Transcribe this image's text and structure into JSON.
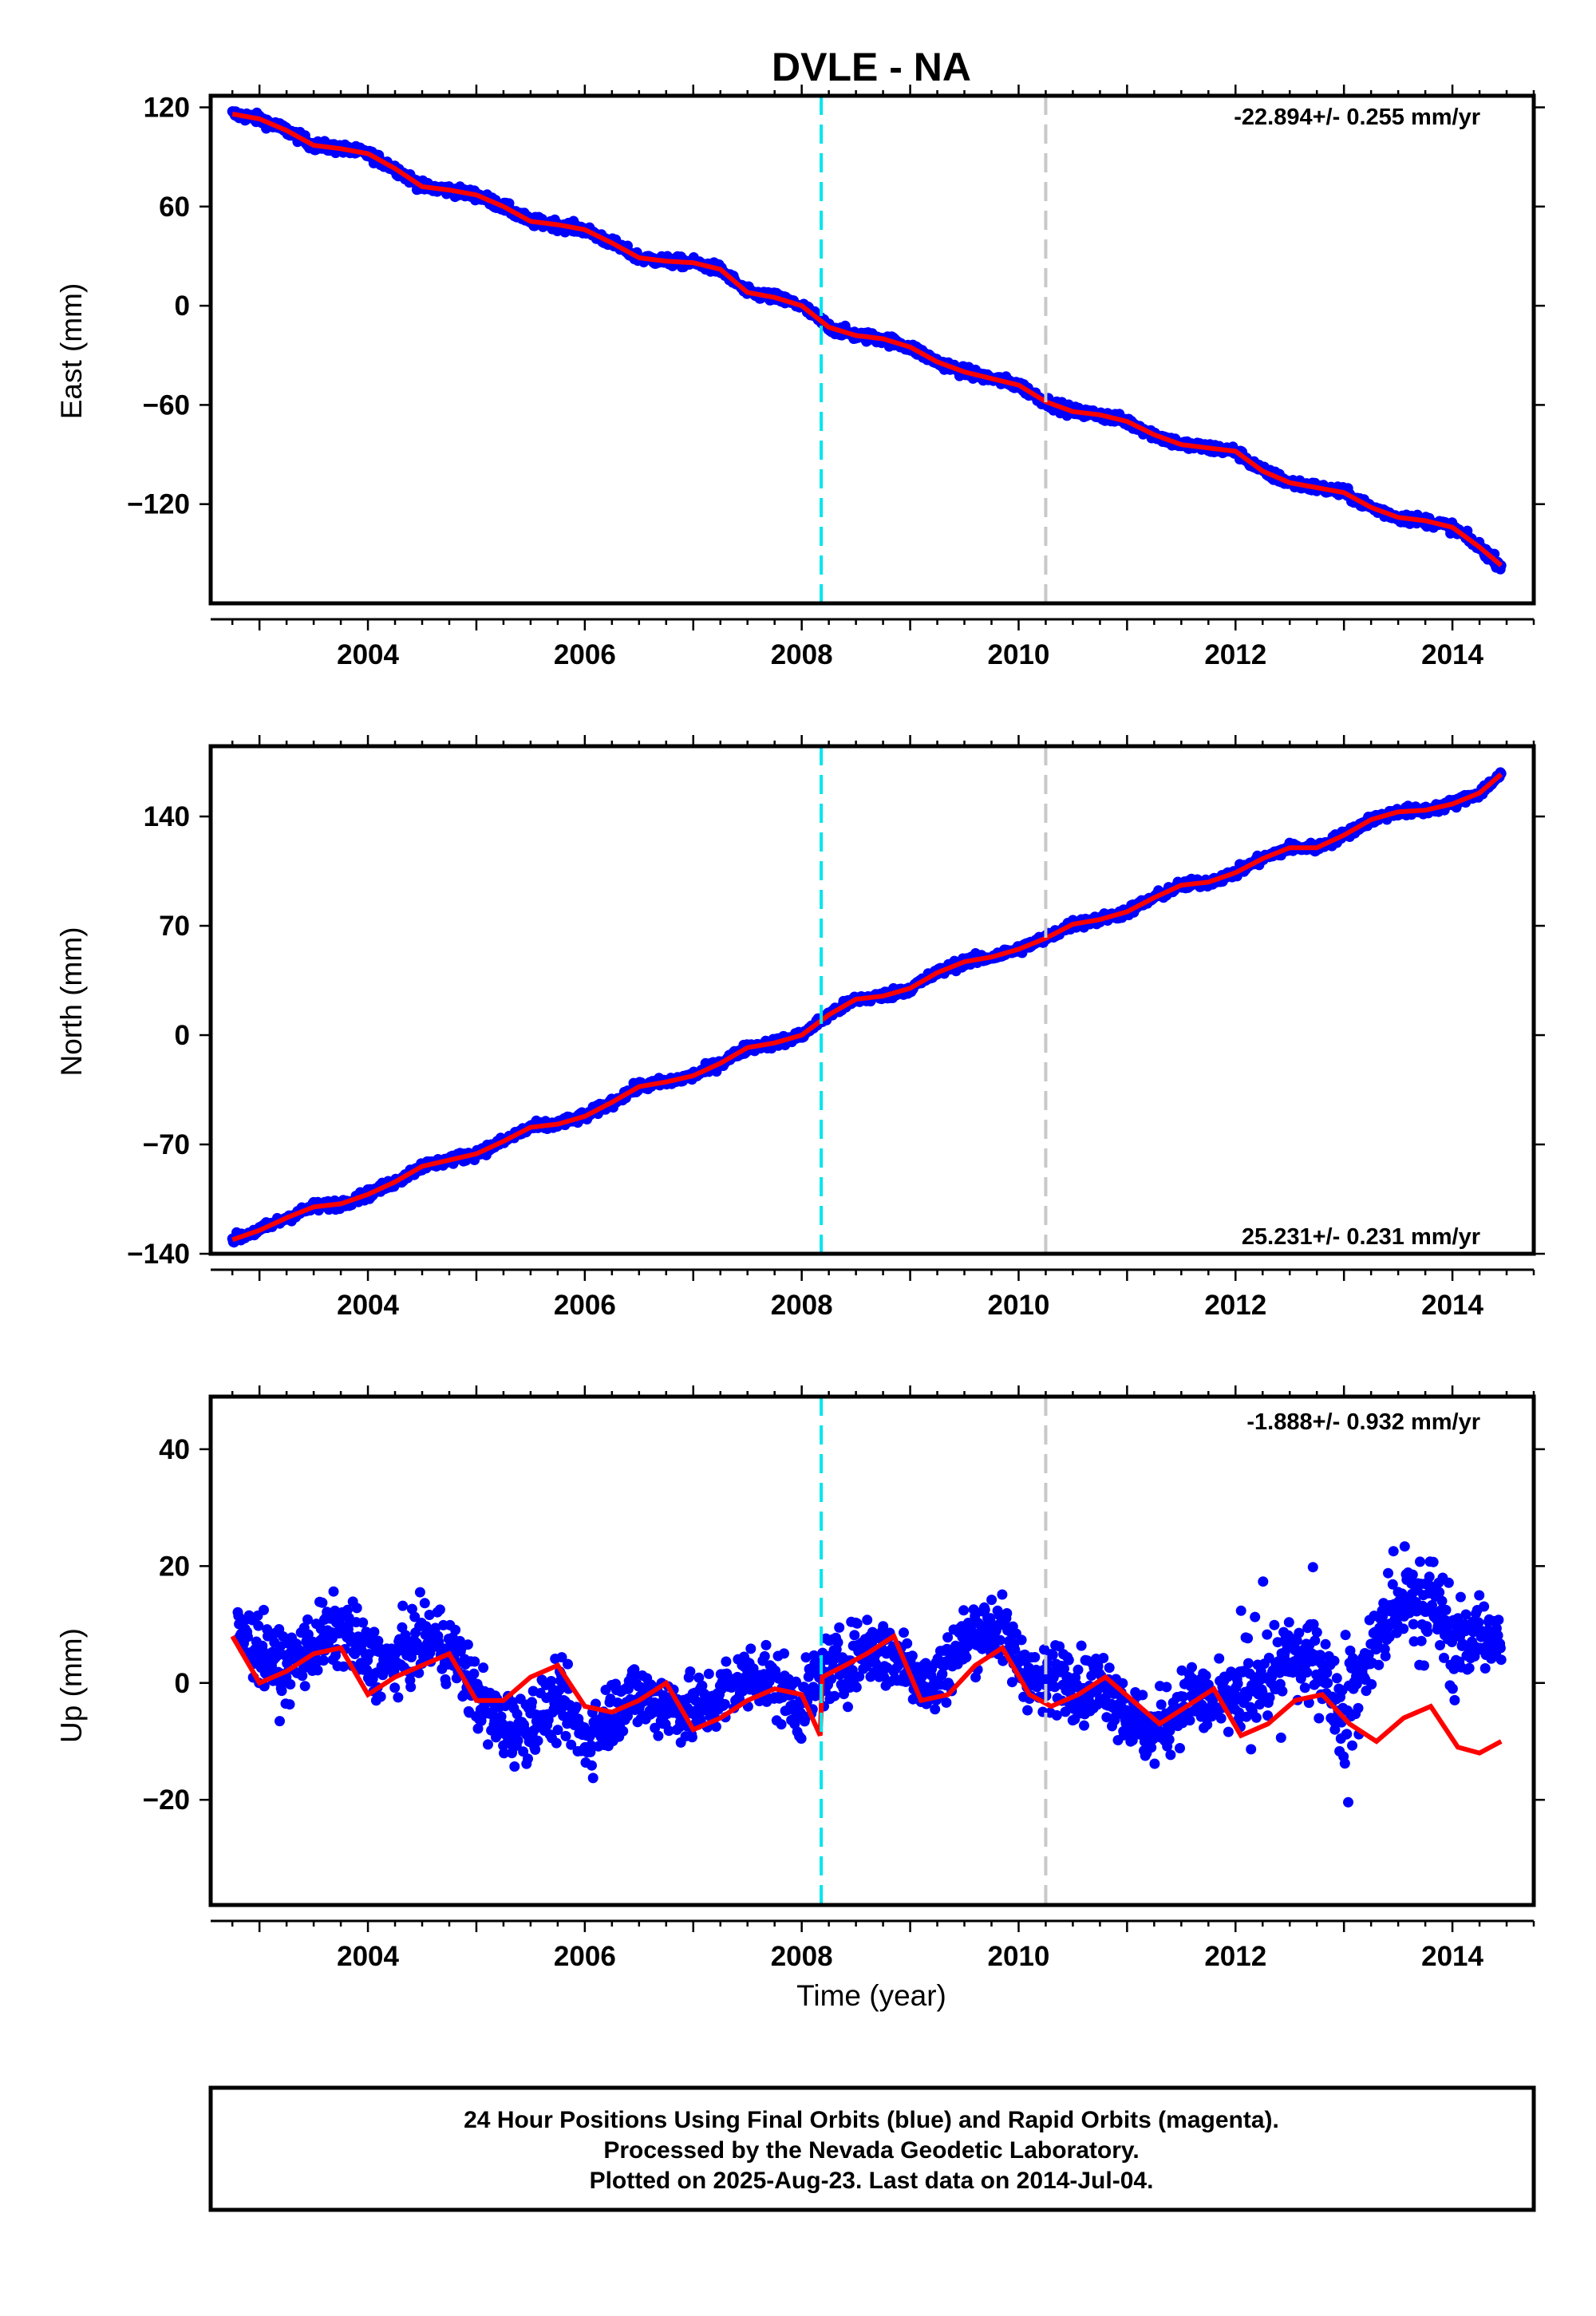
{
  "colors": {
    "final_orbits": "#0000ff",
    "model_fit": "#ff0000",
    "event_line_1": "#00e5ee",
    "event_line_2": "#c8c8c8",
    "frame": "#000000",
    "background": "#ffffff"
  },
  "chart_data": [
    {
      "type": "scatter",
      "title": "DVLE - NA",
      "ylabel": "East (mm)",
      "xlabel": "",
      "xlim": [
        2002.55,
        2014.75
      ],
      "ylim": [
        -180,
        127
      ],
      "xticks": [
        2004,
        2006,
        2008,
        2010,
        2012,
        2014
      ],
      "yticks": [
        120,
        60,
        0,
        -60,
        -120
      ],
      "rate_label": "-22.894+/- 0.255 mm/yr",
      "vertical_lines": [
        2008.18,
        2010.25
      ],
      "series": [
        {
          "role": "observed",
          "x": [
            2002.75,
            2003.0,
            2003.25,
            2003.5,
            2003.75,
            2004.0,
            2004.25,
            2004.5,
            2004.75,
            2005.0,
            2005.25,
            2005.5,
            2005.75,
            2006.0,
            2006.25,
            2006.5,
            2006.75,
            2007.0,
            2007.25,
            2007.5,
            2007.75,
            2008.0,
            2008.25,
            2008.5,
            2008.75,
            2009.0,
            2009.25,
            2009.5,
            2009.75,
            2010.0,
            2010.25,
            2010.5,
            2010.75,
            2011.0,
            2011.25,
            2011.5,
            2011.75,
            2012.0,
            2012.25,
            2012.5,
            2012.75,
            2013.0,
            2013.25,
            2013.5,
            2013.75,
            2014.0,
            2014.25,
            2014.45
          ],
          "y": [
            116,
            113,
            106,
            97,
            95,
            92,
            83,
            72,
            70,
            67,
            60,
            51,
            49,
            46,
            38,
            29,
            27,
            26,
            22,
            8,
            5,
            0,
            -13,
            -18,
            -20,
            -25,
            -34,
            -40,
            -44,
            -48,
            -58,
            -64,
            -66,
            -70,
            -78,
            -84,
            -86,
            -88,
            -100,
            -107,
            -110,
            -113,
            -122,
            -128,
            -130,
            -134,
            -146,
            -157
          ]
        },
        {
          "role": "fit",
          "x": [
            2002.75,
            2003.0,
            2003.25,
            2003.5,
            2003.75,
            2004.0,
            2004.25,
            2004.5,
            2004.75,
            2005.0,
            2005.25,
            2005.5,
            2005.75,
            2006.0,
            2006.25,
            2006.5,
            2006.75,
            2007.0,
            2007.25,
            2007.5,
            2007.75,
            2008.0,
            2008.25,
            2008.5,
            2008.75,
            2009.0,
            2009.25,
            2009.5,
            2009.75,
            2010.0,
            2010.25,
            2010.5,
            2010.75,
            2011.0,
            2011.25,
            2011.5,
            2011.75,
            2012.0,
            2012.25,
            2012.5,
            2012.75,
            2013.0,
            2013.25,
            2013.5,
            2013.75,
            2014.0,
            2014.25,
            2014.45
          ],
          "y": [
            116,
            113,
            106,
            97,
            95,
            92,
            83,
            72,
            70,
            67,
            60,
            51,
            49,
            46,
            38,
            29,
            27,
            26,
            22,
            8,
            5,
            0,
            -13,
            -18,
            -20,
            -25,
            -34,
            -40,
            -44,
            -48,
            -58,
            -64,
            -66,
            -70,
            -78,
            -84,
            -86,
            -88,
            -100,
            -107,
            -110,
            -113,
            -122,
            -128,
            -130,
            -134,
            -146,
            -157
          ]
        }
      ]
    },
    {
      "type": "scatter",
      "ylabel": "North (mm)",
      "xlabel": "",
      "xlim": [
        2002.55,
        2014.75
      ],
      "ylim": [
        -140,
        185
      ],
      "xticks": [
        2004,
        2006,
        2008,
        2010,
        2012,
        2014
      ],
      "yticks": [
        140,
        70,
        0,
        -70,
        -140
      ],
      "rate_label": "25.231+/- 0.231 mm/yr",
      "vertical_lines": [
        2008.18,
        2010.25
      ],
      "series": [
        {
          "role": "observed",
          "x": [
            2002.75,
            2003.0,
            2003.25,
            2003.5,
            2003.75,
            2004.0,
            2004.25,
            2004.5,
            2004.75,
            2005.0,
            2005.25,
            2005.5,
            2005.75,
            2006.0,
            2006.25,
            2006.5,
            2006.75,
            2007.0,
            2007.25,
            2007.5,
            2007.75,
            2008.0,
            2008.25,
            2008.5,
            2008.75,
            2009.0,
            2009.25,
            2009.5,
            2009.75,
            2010.0,
            2010.25,
            2010.5,
            2010.75,
            2011.0,
            2011.25,
            2011.5,
            2011.75,
            2012.0,
            2012.25,
            2012.5,
            2012.75,
            2013.0,
            2013.25,
            2013.5,
            2013.75,
            2014.0,
            2014.25,
            2014.45
          ],
          "y": [
            -131,
            -125,
            -117,
            -110,
            -108,
            -102,
            -94,
            -84,
            -80,
            -76,
            -68,
            -59,
            -57,
            -52,
            -43,
            -33,
            -30,
            -26,
            -18,
            -8,
            -5,
            0,
            13,
            23,
            25,
            30,
            40,
            47,
            50,
            55,
            62,
            71,
            74,
            79,
            88,
            96,
            98,
            104,
            113,
            120,
            120,
            128,
            138,
            143,
            144,
            148,
            155,
            167
          ]
        },
        {
          "role": "fit",
          "x": [
            2002.75,
            2003.0,
            2003.25,
            2003.5,
            2003.75,
            2004.0,
            2004.25,
            2004.5,
            2004.75,
            2005.0,
            2005.25,
            2005.5,
            2005.75,
            2006.0,
            2006.25,
            2006.5,
            2006.75,
            2007.0,
            2007.25,
            2007.5,
            2007.75,
            2008.0,
            2008.25,
            2008.5,
            2008.75,
            2009.0,
            2009.25,
            2009.5,
            2009.75,
            2010.0,
            2010.25,
            2010.5,
            2010.75,
            2011.0,
            2011.25,
            2011.5,
            2011.75,
            2012.0,
            2012.25,
            2012.5,
            2012.75,
            2013.0,
            2013.25,
            2013.5,
            2013.75,
            2014.0,
            2014.25,
            2014.45
          ],
          "y": [
            -131,
            -125,
            -117,
            -110,
            -108,
            -102,
            -94,
            -84,
            -80,
            -76,
            -68,
            -59,
            -57,
            -52,
            -43,
            -33,
            -30,
            -26,
            -18,
            -8,
            -5,
            0,
            13,
            23,
            25,
            30,
            40,
            47,
            50,
            55,
            62,
            71,
            74,
            79,
            88,
            96,
            98,
            104,
            113,
            120,
            120,
            128,
            138,
            143,
            144,
            148,
            155,
            167
          ]
        }
      ]
    },
    {
      "type": "scatter",
      "ylabel": "Up (mm)",
      "xlabel": "Time (year)",
      "xlim": [
        2002.55,
        2014.75
      ],
      "ylim": [
        -38,
        49
      ],
      "xticks": [
        2004,
        2006,
        2008,
        2010,
        2012,
        2014
      ],
      "yticks": [
        40,
        20,
        0,
        -20
      ],
      "rate_label": "-1.888+/- 0.932 mm/yr",
      "vertical_lines": [
        2008.18,
        2010.25
      ],
      "series": [
        {
          "role": "observed",
          "x": [
            2002.8,
            2003.0,
            2003.2,
            2003.4,
            2003.6,
            2003.8,
            2004.0,
            2004.2,
            2004.4,
            2004.6,
            2004.8,
            2005.0,
            2005.2,
            2005.4,
            2005.6,
            2005.8,
            2006.0,
            2006.2,
            2006.4,
            2006.6,
            2006.8,
            2007.0,
            2007.2,
            2007.4,
            2007.6,
            2007.8,
            2008.0,
            2008.2,
            2008.4,
            2008.6,
            2008.8,
            2009.0,
            2009.2,
            2009.4,
            2009.6,
            2009.8,
            2010.0,
            2010.2,
            2010.4,
            2010.6,
            2010.8,
            2011.0,
            2011.2,
            2011.4,
            2011.6,
            2011.8,
            2012.0,
            2012.2,
            2012.5,
            2012.8,
            2013.0,
            2013.3,
            2013.6,
            2013.8,
            2014.0,
            2014.2,
            2014.45
          ],
          "y": [
            8,
            6,
            2,
            5,
            8,
            9,
            4,
            3,
            6,
            8,
            5,
            -2,
            -7,
            -8,
            -5,
            -3,
            -10,
            -6,
            -2,
            -3,
            -4,
            -5,
            -3,
            0,
            2,
            -1,
            -4,
            2,
            3,
            6,
            5,
            3,
            -1,
            5,
            9,
            10,
            4,
            -1,
            2,
            -1,
            0,
            -5,
            -9,
            -6,
            -2,
            -4,
            -3,
            -2,
            5,
            3,
            -5,
            8,
            15,
            14,
            6,
            8,
            7
          ]
        },
        {
          "role": "fit",
          "x": [
            2002.75,
            2003.0,
            2003.25,
            2003.5,
            2003.75,
            2004.0,
            2004.25,
            2004.5,
            2004.75,
            2005.0,
            2005.25,
            2005.5,
            2005.75,
            2006.0,
            2006.25,
            2006.5,
            2006.75,
            2007.0,
            2007.25,
            2007.5,
            2007.75,
            2008.0,
            2008.17,
            2008.19,
            2008.4,
            2008.6,
            2008.85,
            2009.1,
            2009.35,
            2009.6,
            2009.85,
            2010.1,
            2010.3,
            2010.55,
            2010.8,
            2011.05,
            2011.3,
            2011.55,
            2011.8,
            2012.05,
            2012.3,
            2012.55,
            2012.8,
            2013.05,
            2013.3,
            2013.55,
            2013.8,
            2014.05,
            2014.25,
            2014.45
          ],
          "y": [
            8,
            0,
            2,
            5,
            6,
            -2,
            1,
            3,
            5,
            -3,
            -3,
            1,
            3,
            -4,
            -5,
            -3,
            0,
            -8,
            -6,
            -3,
            -1,
            -2,
            -9,
            1,
            3,
            5,
            8,
            -3,
            -2,
            3,
            6,
            -2,
            -4,
            -2,
            1,
            -3,
            -7,
            -4,
            -1,
            -9,
            -7,
            -3,
            -2,
            -7,
            -10,
            -6,
            -4,
            -11,
            -12,
            -10
          ]
        }
      ]
    }
  ],
  "footer": {
    "line1": "24 Hour Positions Using Final Orbits (blue) and Rapid Orbits (magenta).",
    "line2": "Processed by the Nevada Geodetic Laboratory.",
    "line3": "Plotted on 2025-Aug-23. Last data on 2014-Jul-04."
  }
}
